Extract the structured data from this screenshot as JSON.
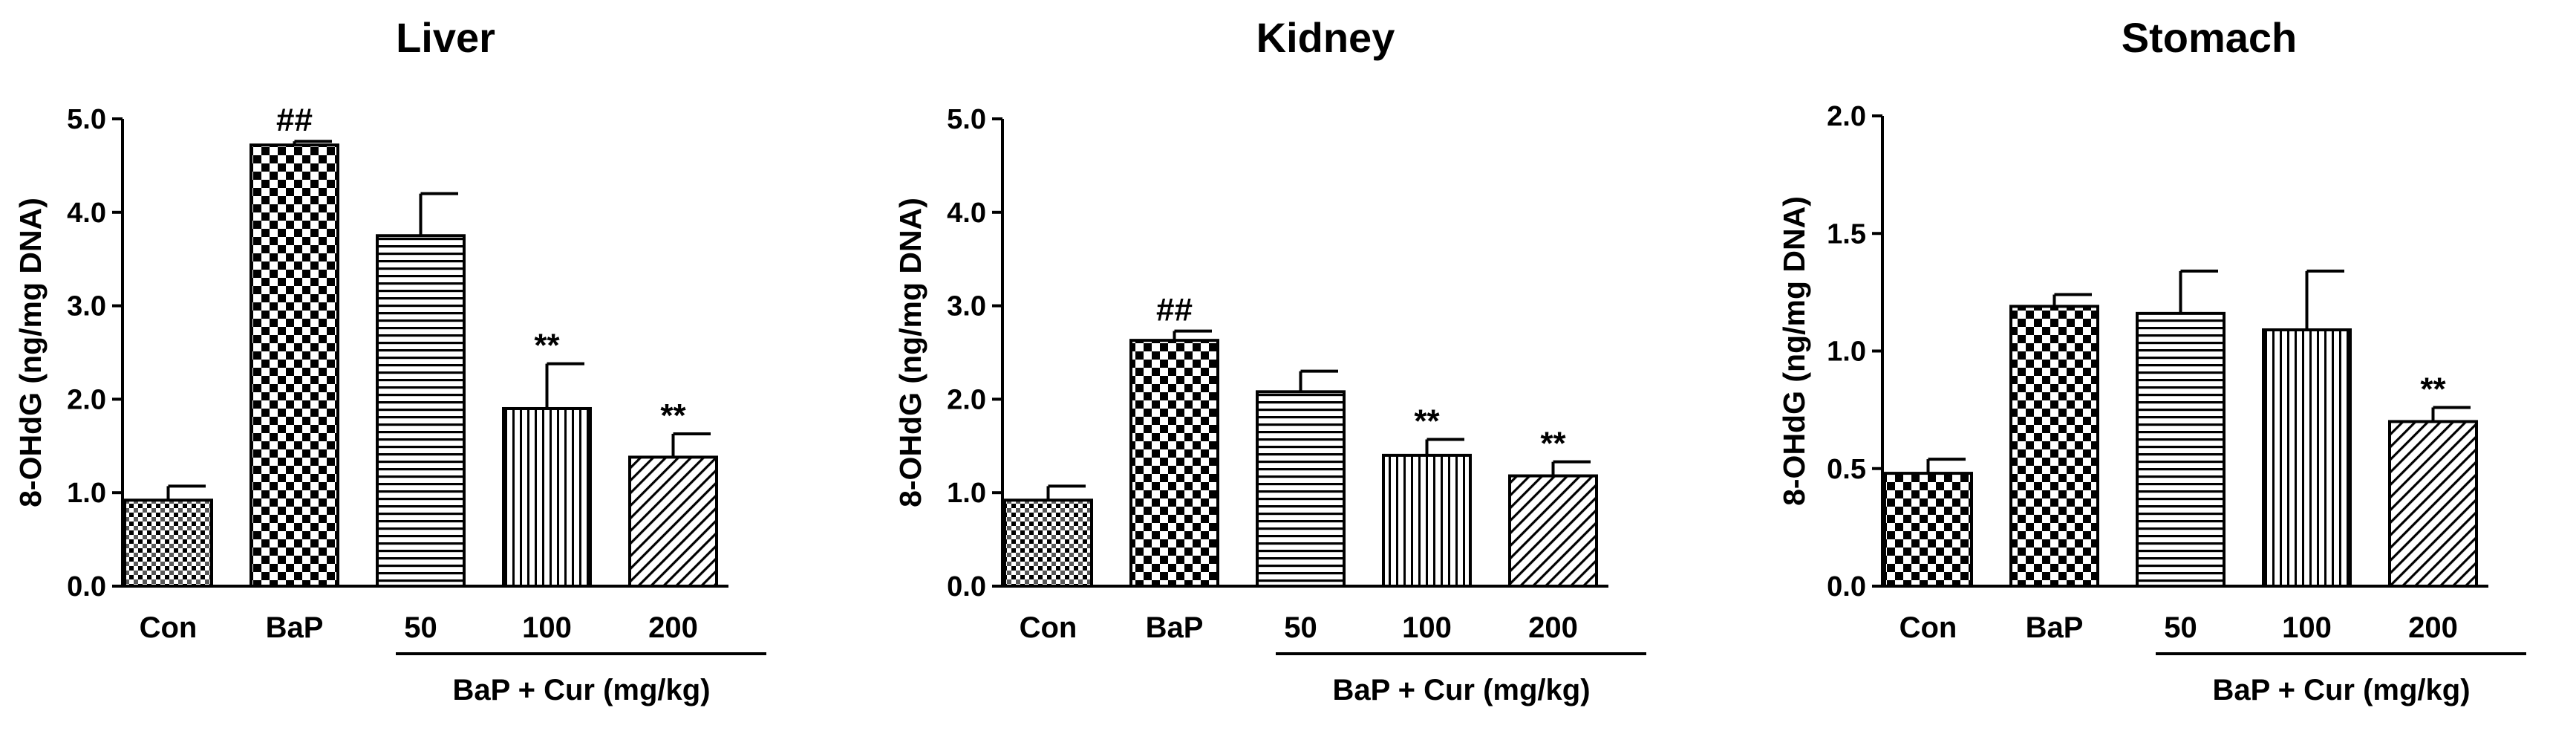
{
  "colors": {
    "ink": "#000000",
    "background": "#ffffff"
  },
  "chart_data": [
    {
      "type": "bar",
      "title": "Liver",
      "ylabel": "8-OHdG  (ng/mg DNA)",
      "ylim": [
        0,
        5
      ],
      "yticks": [
        "0.0",
        "1.0",
        "2.0",
        "3.0",
        "4.0",
        "5.0"
      ],
      "ytick_values": [
        0,
        1,
        2,
        3,
        4,
        5
      ],
      "categories": [
        "Con",
        "BaP",
        "50",
        "100",
        "200"
      ],
      "values": [
        0.92,
        4.72,
        3.75,
        1.9,
        1.38
      ],
      "errors": [
        0.15,
        0.04,
        0.45,
        0.48,
        0.25
      ],
      "patterns": [
        "fine-check",
        "checker",
        "horizontal",
        "vertical",
        "diagonal"
      ],
      "annotations": [
        "",
        "##",
        "",
        "**",
        "**"
      ],
      "group_label": "BaP  +  Cur  (mg/kg)",
      "grid": false
    },
    {
      "type": "bar",
      "title": "Kidney",
      "ylabel": "8-OHdG  (ng/mg DNA)",
      "ylim": [
        0,
        5
      ],
      "yticks": [
        "0.0",
        "1.0",
        "2.0",
        "3.0",
        "4.0",
        "5.0"
      ],
      "ytick_values": [
        0,
        1,
        2,
        3,
        4,
        5
      ],
      "categories": [
        "Con",
        "BaP",
        "50",
        "100",
        "200"
      ],
      "values": [
        0.92,
        2.63,
        2.08,
        1.4,
        1.18
      ],
      "errors": [
        0.15,
        0.1,
        0.22,
        0.17,
        0.15
      ],
      "patterns": [
        "fine-check",
        "checker",
        "horizontal",
        "vertical",
        "diagonal"
      ],
      "annotations": [
        "",
        "##",
        "",
        "**",
        "**"
      ],
      "group_label": "BaP + Cur  (mg/kg)",
      "grid": false
    },
    {
      "type": "bar",
      "title": "Stomach",
      "ylabel": "8-OHdG  (ng/mg DNA)",
      "ylim": [
        0,
        2
      ],
      "yticks": [
        "0.0",
        "0.5",
        "1.0",
        "1.5",
        "2.0"
      ],
      "ytick_values": [
        0,
        0.5,
        1,
        1.5,
        2
      ],
      "categories": [
        "Con",
        "BaP",
        "50",
        "100",
        "200"
      ],
      "values": [
        0.48,
        1.19,
        1.16,
        1.09,
        0.7
      ],
      "errors": [
        0.06,
        0.05,
        0.18,
        0.25,
        0.06
      ],
      "patterns": [
        "checker",
        "checker",
        "horizontal",
        "vertical",
        "diagonal"
      ],
      "annotations": [
        "",
        "",
        "",
        "",
        "**"
      ],
      "group_label": "BaP + Cur  (mg/kg)",
      "grid": false
    }
  ]
}
